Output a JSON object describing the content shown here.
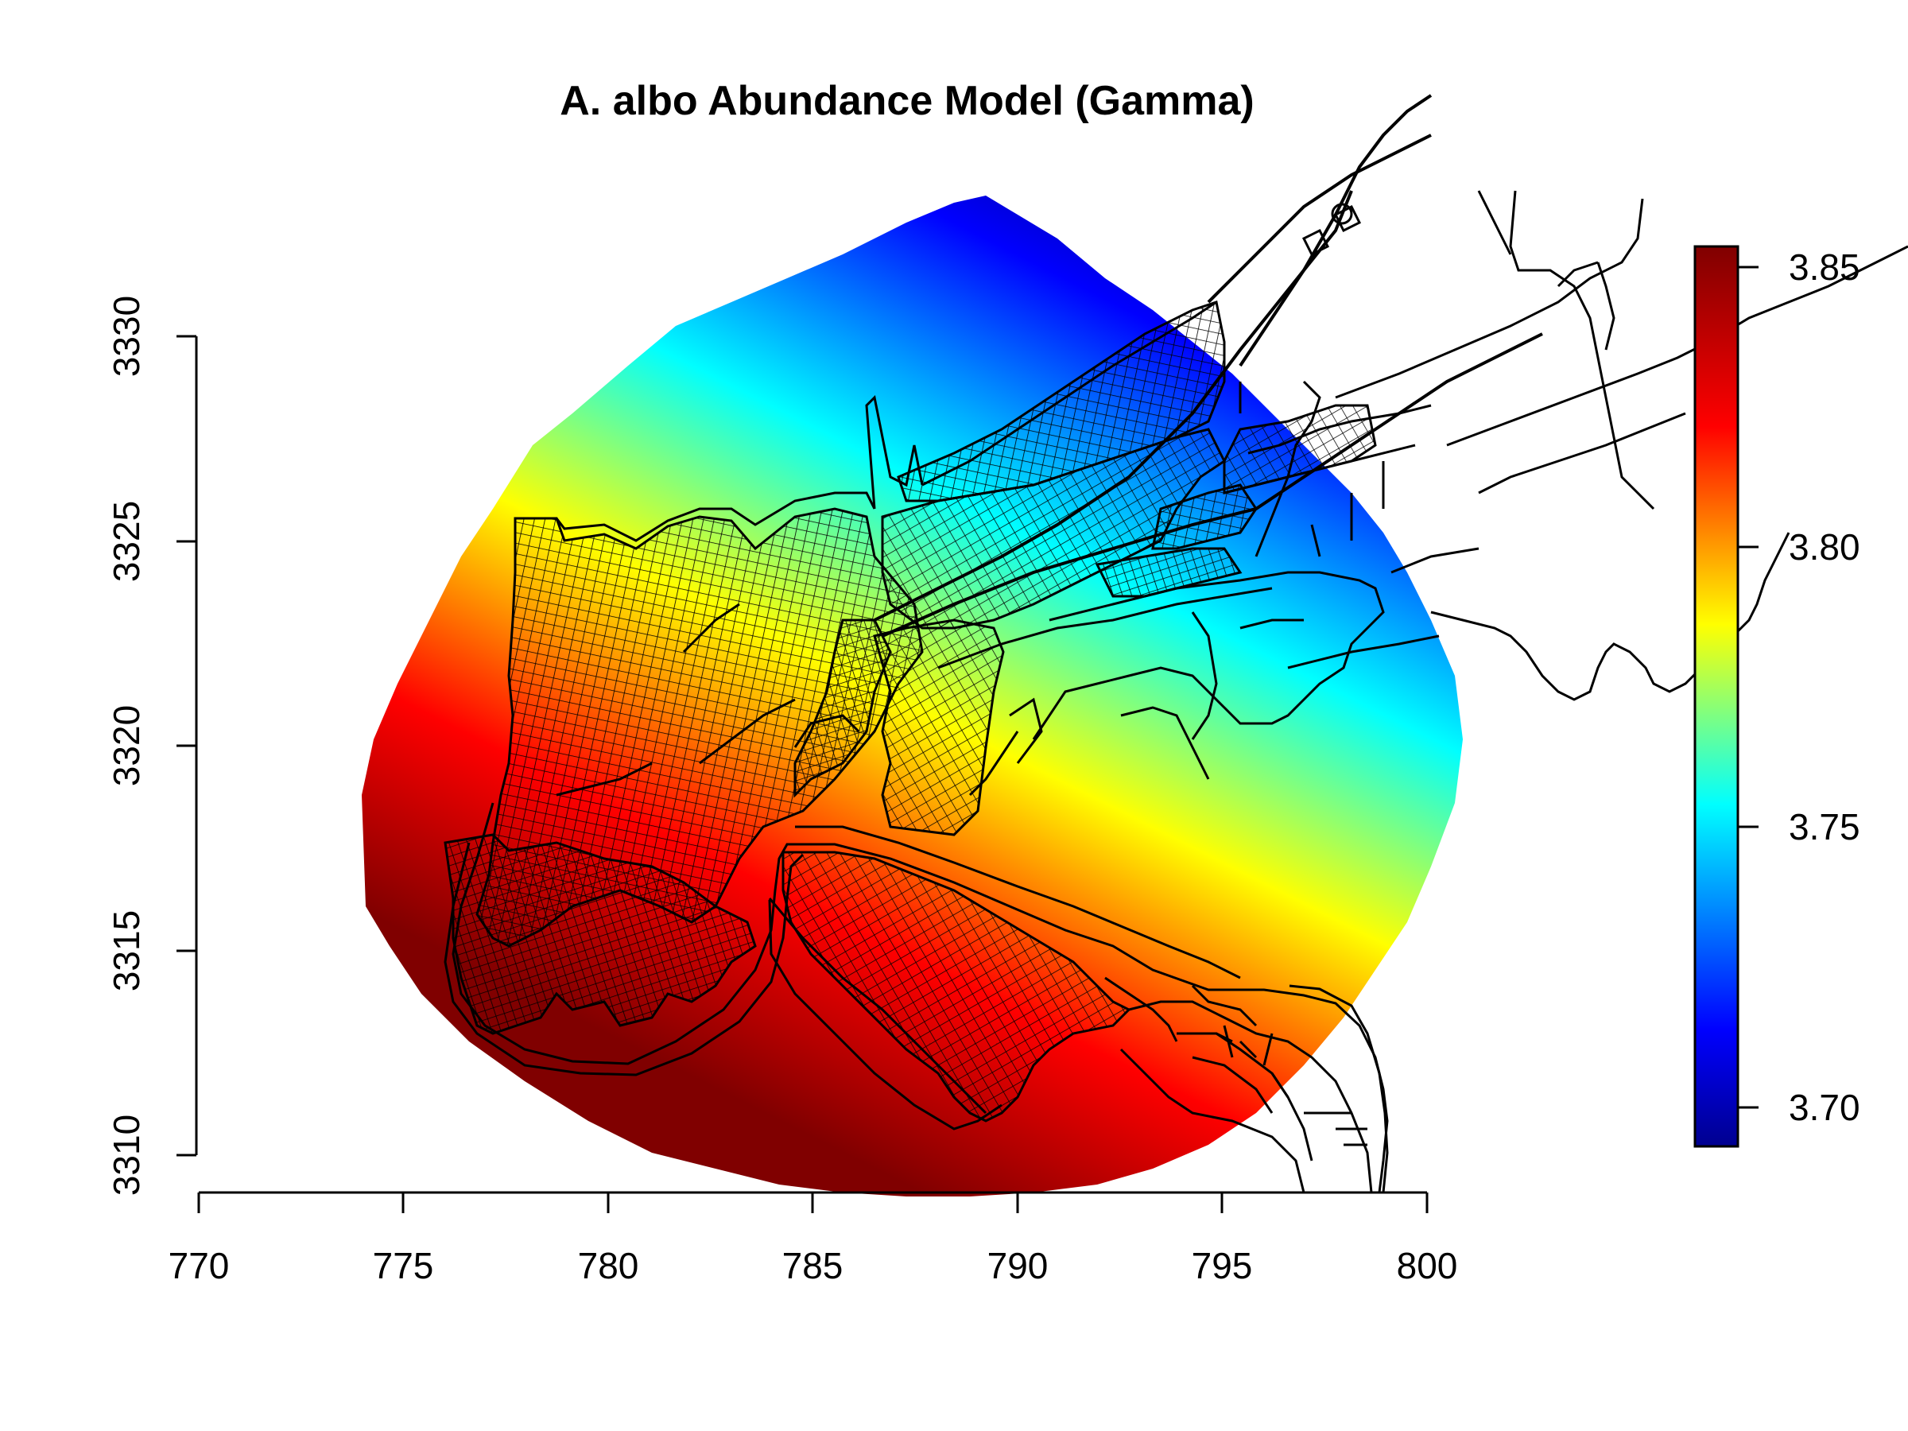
{
  "title": "A. albo Abundance Model (Gamma)",
  "x_axis": {
    "ticks": [
      "770",
      "775",
      "780",
      "785",
      "790",
      "795",
      "800"
    ]
  },
  "y_axis": {
    "ticks": [
      "3310",
      "3315",
      "3320",
      "3325",
      "3330"
    ]
  },
  "legend": {
    "ticks": [
      "3.70",
      "3.75",
      "3.80",
      "3.85"
    ],
    "colors": [
      "#00008f",
      "#0000ff",
      "#00ffff",
      "#ffff00",
      "#ff0000",
      "#800000"
    ]
  },
  "map_data": {
    "type": "interpolated-surface-with-street-network",
    "x_range": [
      770,
      800
    ],
    "y_range": [
      3310,
      3330
    ],
    "value_range": [
      3.69,
      3.855
    ],
    "high_value_area": "south",
    "low_value_area": "northeast"
  }
}
